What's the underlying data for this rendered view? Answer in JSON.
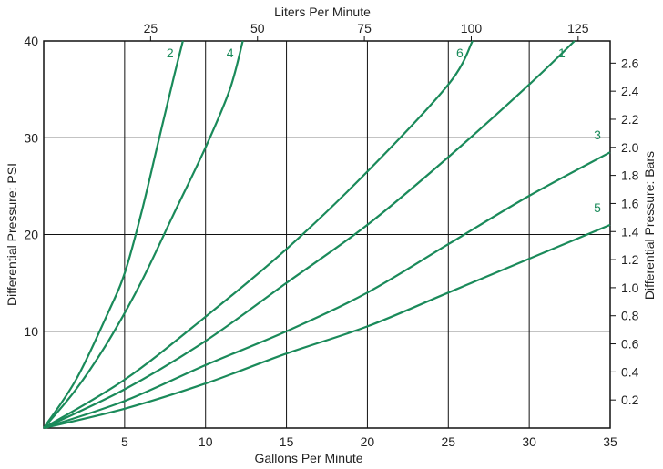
{
  "chart_data": {
    "type": "line",
    "xlabel": "Gallons Per Minute",
    "ylabel": "Differential Pressure: PSI",
    "x2label": "Liters Per Minute",
    "y2label": "Differential Pressure: Bars",
    "xlim": [
      0,
      35
    ],
    "ylim": [
      0,
      40
    ],
    "x_ticks": [
      5,
      10,
      15,
      20,
      25,
      30,
      35
    ],
    "y_ticks": [
      10,
      20,
      30,
      40
    ],
    "x2_ticks": [
      25,
      50,
      75,
      100,
      125
    ],
    "y2_ticks": [
      0.2,
      0.4,
      0.6,
      0.8,
      1.0,
      1.2,
      1.4,
      1.6,
      1.8,
      2.0,
      2.2,
      2.4,
      2.6
    ],
    "x2_tick_labels": [
      "25",
      "50",
      "75",
      "100",
      "125"
    ],
    "y2_tick_labels": [
      "0.2",
      "0.4",
      "0.6",
      "0.8",
      "1.0",
      "1.2",
      "1.4",
      "1.6",
      "1.8",
      "2.0",
      "2.2",
      "2.4",
      "2.6"
    ],
    "gallons_per_liter": 0.26417,
    "psi_per_bar": 14.5038,
    "grid": true,
    "line_color": "#1a8a5a",
    "series": [
      {
        "name": "2",
        "points": [
          [
            0,
            0
          ],
          [
            2,
            5
          ],
          [
            4,
            12
          ],
          [
            5,
            16
          ],
          [
            6,
            22
          ],
          [
            7,
            29
          ],
          [
            8,
            36
          ],
          [
            8.6,
            40
          ]
        ]
      },
      {
        "name": "4",
        "points": [
          [
            0,
            0
          ],
          [
            2,
            4
          ],
          [
            4,
            9
          ],
          [
            6,
            15
          ],
          [
            8,
            22
          ],
          [
            10,
            29
          ],
          [
            11.5,
            35
          ],
          [
            12.3,
            40
          ]
        ]
      },
      {
        "name": "6",
        "points": [
          [
            0,
            0
          ],
          [
            5,
            5
          ],
          [
            10,
            11.5
          ],
          [
            15,
            18.5
          ],
          [
            20,
            26.5
          ],
          [
            25,
            35.5
          ],
          [
            26.5,
            40
          ]
        ]
      },
      {
        "name": "1",
        "points": [
          [
            0,
            0
          ],
          [
            5,
            4
          ],
          [
            10,
            9
          ],
          [
            15,
            15
          ],
          [
            20,
            21
          ],
          [
            25,
            28
          ],
          [
            30,
            35.5
          ],
          [
            32.8,
            40
          ]
        ]
      },
      {
        "name": "3",
        "points": [
          [
            0,
            0
          ],
          [
            5,
            2.8
          ],
          [
            10,
            6.5
          ],
          [
            15,
            10
          ],
          [
            20,
            14
          ],
          [
            25,
            19
          ],
          [
            30,
            24
          ],
          [
            35,
            28.5
          ]
        ]
      },
      {
        "name": "5",
        "points": [
          [
            0,
            0
          ],
          [
            5,
            2
          ],
          [
            10,
            4.6
          ],
          [
            15,
            7.7
          ],
          [
            20,
            10.5
          ],
          [
            25,
            14
          ],
          [
            30,
            17.5
          ],
          [
            35,
            21
          ]
        ]
      }
    ]
  }
}
